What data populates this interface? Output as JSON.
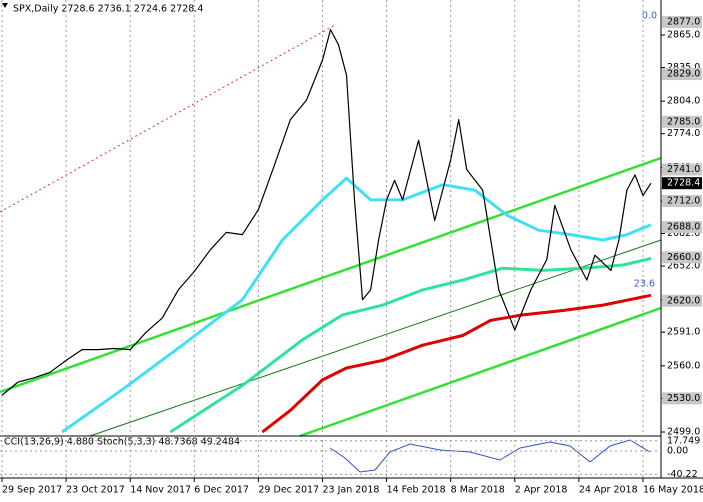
{
  "header": "SPX,Daily  2728.6 2736.1 2724.6 2728.4",
  "fibo_labels": [
    "0.0",
    "23.6"
  ],
  "chart_data": {
    "type": "line",
    "xlim": [
      -0.5,
      164.5
    ],
    "ylim": [
      2495.3,
      2897.3
    ],
    "grid": true,
    "xticks": [
      {
        "value": 0,
        "label": "29 Sep 2017"
      },
      {
        "value": 16,
        "label": "23 Oct 2017"
      },
      {
        "value": 32,
        "label": "14 Nov 2017"
      },
      {
        "value": 48,
        "label": "6 Dec 2017"
      },
      {
        "value": 64,
        "label": "29 Dec 2017"
      },
      {
        "value": 80,
        "label": "23 Jan 2018"
      },
      {
        "value": 96,
        "label": "14 Feb 2018"
      },
      {
        "value": 112,
        "label": "8 Mar 2018"
      },
      {
        "value": 128,
        "label": "2 Apr 2018"
      },
      {
        "value": 144,
        "label": "24 Apr 2018"
      },
      {
        "value": 160,
        "label": "16 May 2018"
      }
    ],
    "yticks": [
      {
        "value": 2865,
        "label": "2865.0"
      },
      {
        "value": 2835,
        "label": "2835.0"
      },
      {
        "value": 2804,
        "label": "2804.0"
      },
      {
        "value": 2774,
        "label": "2774.0"
      },
      {
        "value": 2743,
        "label": "2743.0"
      },
      {
        "value": 2712,
        "label": "2712.0"
      },
      {
        "value": 2682,
        "label": "2682.0"
      },
      {
        "value": 2652,
        "label": "2652.0"
      },
      {
        "value": 2621,
        "label": "2621.0"
      },
      {
        "value": 2591,
        "label": "2591.0"
      },
      {
        "value": 2560,
        "label": "2560.0"
      },
      {
        "value": 2530,
        "label": "2530.0"
      },
      {
        "value": 2499,
        "label": "2499.0"
      }
    ],
    "levels": [
      {
        "value": 2877,
        "label": "2877.0"
      },
      {
        "value": 2829,
        "label": "2829.0"
      },
      {
        "value": 2785,
        "label": "2785.0"
      },
      {
        "value": 2741,
        "label": "2741.0"
      },
      {
        "value": 2712,
        "label": "2712.0"
      },
      {
        "value": 2688,
        "label": "2688.0"
      },
      {
        "value": 2660,
        "label": "2660.0"
      },
      {
        "value": 2620,
        "label": "2620.0"
      },
      {
        "value": 2530,
        "label": "2530.0"
      }
    ],
    "current": {
      "value": 2728.4,
      "label": "2728.4"
    },
    "series": [
      {
        "color": "#000000",
        "width": 1.2,
        "x": [
          0,
          4,
          8,
          12,
          16,
          20,
          24,
          28,
          32,
          36,
          40,
          44,
          48,
          52,
          56,
          60,
          64,
          68,
          72,
          76,
          80,
          82,
          84,
          86,
          88,
          90,
          92,
          94,
          96,
          98,
          100,
          104,
          108,
          112,
          114,
          116,
          120,
          124,
          128,
          132,
          136,
          138,
          142,
          146,
          148,
          152,
          154,
          156,
          158,
          160,
          162
        ],
        "values": [
          2533,
          2545,
          2549,
          2554,
          2565,
          2575,
          2575,
          2576,
          2575,
          2591,
          2604,
          2630,
          2647,
          2667,
          2683,
          2681,
          2704,
          2745,
          2787,
          2805,
          2842,
          2870,
          2856,
          2828,
          2713,
          2621,
          2630,
          2676,
          2713,
          2731,
          2713,
          2768,
          2694,
          2750,
          2787,
          2741,
          2722,
          2630,
          2593,
          2630,
          2658,
          2708,
          2667,
          2639,
          2662,
          2648,
          2676,
          2722,
          2736,
          2717,
          2728.4
        ]
      },
      {
        "color": "#3fe0f5",
        "width": 3,
        "x": [
          15,
          30,
          45,
          60,
          70,
          80,
          86,
          92,
          100,
          110,
          118,
          126,
          134,
          142,
          150,
          156,
          162
        ],
        "values": [
          2499,
          2538,
          2579,
          2621,
          2676,
          2713,
          2733,
          2713,
          2713,
          2727,
          2722,
          2699,
          2685,
          2681,
          2676,
          2681,
          2690
        ]
      },
      {
        "color": "#2ee39a",
        "width": 3,
        "x": [
          42,
          60,
          75,
          85,
          95,
          105,
          115,
          125,
          135,
          145,
          155,
          162
        ],
        "values": [
          2499,
          2542,
          2584,
          2607,
          2616,
          2630,
          2639,
          2650,
          2648,
          2650,
          2653,
          2659
        ]
      },
      {
        "color": "#e00000",
        "width": 3,
        "x": [
          65,
          72,
          80,
          86,
          95,
          105,
          115,
          122,
          130,
          140,
          150,
          162
        ],
        "values": [
          2499,
          2519,
          2547,
          2558,
          2565,
          2579,
          2588,
          2602,
          2607,
          2611,
          2616,
          2625
        ]
      }
    ]
  },
  "indicator": {
    "label": "CCI(13,26,9) 4.880  Stoch(5,3,3) 48.7368 49.2484",
    "ylim": [
      -46.5,
      26
    ],
    "yticks": [
      {
        "value": 17.749,
        "label": "17.749"
      },
      {
        "value": 0,
        "label": "0.00"
      },
      {
        "value": -40.22,
        "label": "-40.22"
      }
    ]
  }
}
